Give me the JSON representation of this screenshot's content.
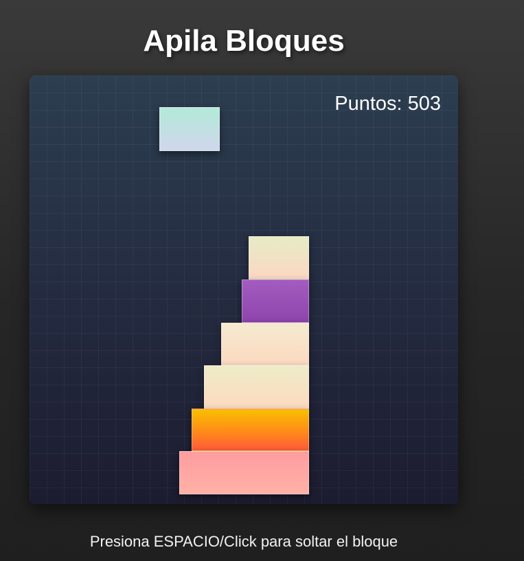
{
  "game": {
    "title": "Apila Bloques",
    "instructions": "Presiona ESPACIO/Click para soltar el bloque"
  },
  "score": {
    "label": "Puntos:",
    "value": "503"
  },
  "blocks": {
    "moving": {
      "color": "#b3ead8"
    },
    "stack": [
      {
        "level": 1,
        "color": "#ffa7a3"
      },
      {
        "level": 2,
        "color": "#ff8a1a"
      },
      {
        "level": 3,
        "color": "#f5e2c5"
      },
      {
        "level": 4,
        "color": "#f7e0c6"
      },
      {
        "level": 5,
        "color": "#9b50ba"
      },
      {
        "level": 6,
        "color": "#f0e0c4"
      }
    ]
  },
  "colors": {
    "background": "#2a2a2a",
    "board_top": "#2c3e50",
    "board_bottom": "#1c1c30",
    "text": "#ffffff"
  }
}
